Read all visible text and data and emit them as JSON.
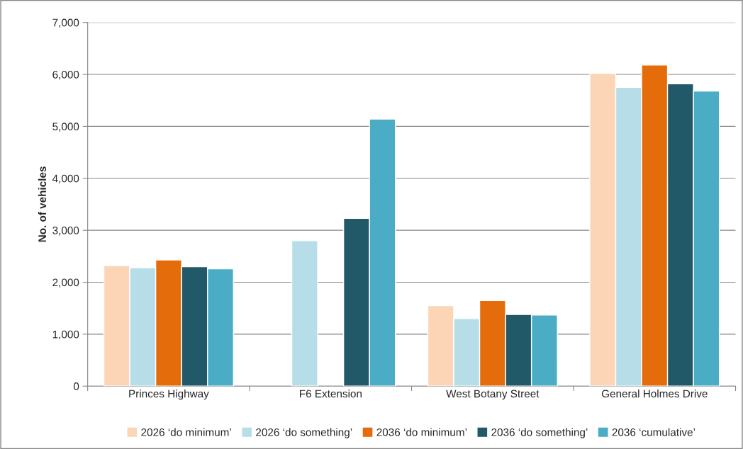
{
  "chart_data": {
    "type": "bar",
    "ylabel": "No. of vehicles",
    "categories": [
      "Princes Highway",
      "F6 Extension",
      "West Botany Street",
      "General Holmes Drive"
    ],
    "series": [
      {
        "name": "2026 ‘do minimum’",
        "color": "#fbd5b5",
        "values": [
          2320,
          null,
          1550,
          6020
        ]
      },
      {
        "name": "2026 ‘do something’",
        "color": "#b7dee8",
        "values": [
          2280,
          2800,
          1300,
          5750
        ]
      },
      {
        "name": "2036 ‘do minimum’",
        "color": "#e46c0a",
        "values": [
          2430,
          null,
          1650,
          6180
        ]
      },
      {
        "name": "2036 ‘do something’",
        "color": "#215968",
        "values": [
          2300,
          3230,
          1380,
          5820
        ]
      },
      {
        "name": "2036 ‘cumulative’",
        "color": "#4bacc6",
        "values": [
          2260,
          5140,
          1370,
          5680
        ]
      }
    ],
    "ylim": [
      0,
      7000
    ],
    "yticks": [
      {
        "value": 0,
        "label": "0"
      },
      {
        "value": 1000,
        "label": "1,000"
      },
      {
        "value": 2000,
        "label": "2,000"
      },
      {
        "value": 3000,
        "label": "3,000"
      },
      {
        "value": 4000,
        "label": "4,000"
      },
      {
        "value": 5000,
        "label": "5,000"
      },
      {
        "value": 6000,
        "label": "6,000"
      },
      {
        "value": 7000,
        "label": "7,000"
      }
    ],
    "grid": "y",
    "legend": "bottom"
  }
}
